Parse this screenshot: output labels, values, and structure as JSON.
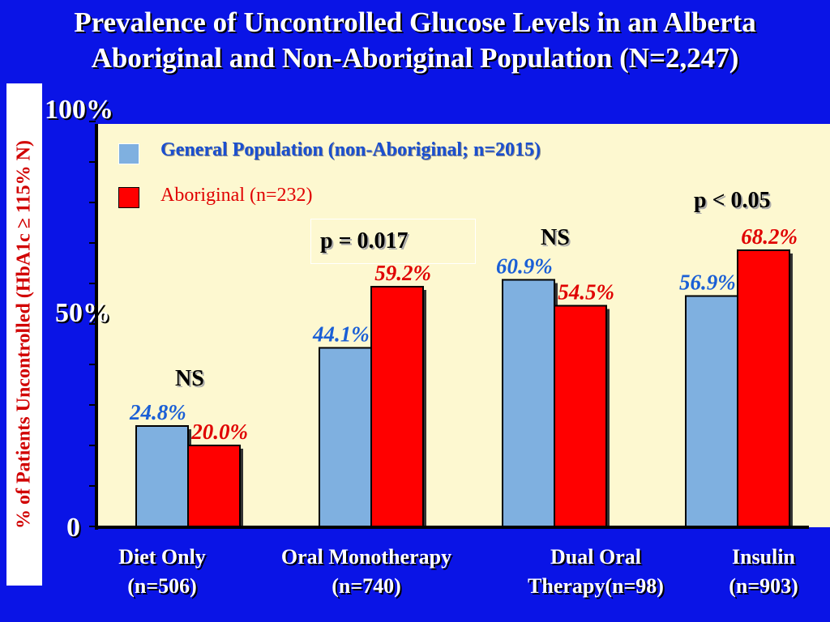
{
  "chart_data": {
    "type": "bar",
    "title_line1": "Prevalence of Uncontrolled Glucose Levels in an Alberta",
    "title_line2": "Aboriginal and Non-Aboriginal Population (N=2,247)",
    "ylabel": "% of Patients Uncontrolled (HbA1c ≥ 115% N)",
    "ylim": [
      0,
      100
    ],
    "yticks": [
      "0",
      "50%",
      "100%"
    ],
    "categories": [
      {
        "line1": "Diet Only",
        "line2": "(n=506)"
      },
      {
        "line1": "Oral Monotherapy",
        "line2": "(n=740)"
      },
      {
        "line1": "Dual  Oral",
        "line2": "Therapy(n=98)"
      },
      {
        "line1": "Insulin",
        "line2": "(n=903)"
      }
    ],
    "series": [
      {
        "name": "General Population (non-Aboriginal; n=2015)",
        "color": "#7fb0e0",
        "label_color": "#1a5fd6",
        "values": [
          24.8,
          44.1,
          60.9,
          56.9
        ],
        "labels": [
          "24.8%",
          "44.1%",
          "60.9%",
          "56.9%"
        ]
      },
      {
        "name": "Aboriginal (n=232)",
        "color": "#ff0000",
        "label_color": "#e00000",
        "values": [
          20.0,
          59.2,
          54.5,
          68.2
        ],
        "labels": [
          "20.0%",
          "59.2%",
          "54.5%",
          "68.2%"
        ]
      }
    ],
    "annotations": [
      "NS",
      "p = 0.017",
      "NS",
      "p < 0.05"
    ],
    "legend_position": "top-left",
    "grid": false
  }
}
